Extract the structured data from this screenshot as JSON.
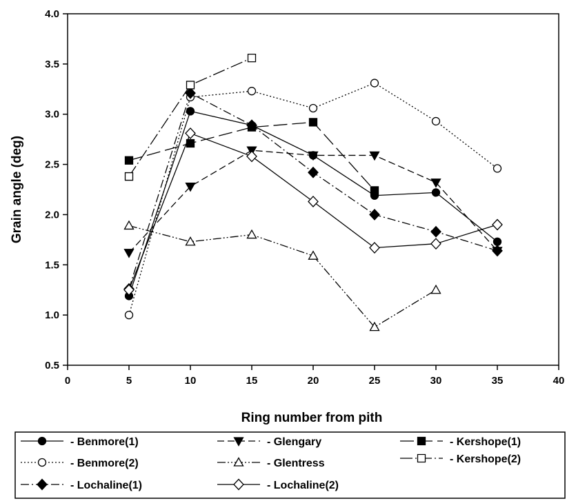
{
  "chart_data": {
    "type": "line",
    "title": "",
    "xlabel": "Ring number from pith",
    "ylabel": "Grain angle (deg)",
    "xlim": [
      0,
      40
    ],
    "ylim": [
      0.5,
      4.0
    ],
    "xticks": [
      "0",
      "5",
      "10",
      "15",
      "20",
      "25",
      "30",
      "35",
      "40"
    ],
    "yticks": [
      "0.5",
      "1.0",
      "1.5",
      "2.0",
      "2.5",
      "3.0",
      "3.5",
      "4.0"
    ],
    "grid": false,
    "legend_placement": "bottom",
    "series": [
      {
        "name": "- Benmore(1)",
        "marker": "circle-filled",
        "dash": "solid",
        "points": [
          [
            5,
            1.19
          ],
          [
            10,
            3.03
          ],
          [
            15,
            2.89
          ],
          [
            20,
            2.59
          ],
          [
            25,
            2.19
          ],
          [
            30,
            2.22
          ],
          [
            35,
            1.73
          ]
        ]
      },
      {
        "name": "- Benmore(2)",
        "marker": "circle-open",
        "dash": "dotted",
        "points": [
          [
            5,
            1.0
          ],
          [
            10,
            3.17
          ],
          [
            15,
            3.23
          ],
          [
            20,
            3.06
          ],
          [
            25,
            3.31
          ],
          [
            30,
            2.93
          ],
          [
            35,
            2.46
          ]
        ]
      },
      {
        "name": "- Lochaline(1)",
        "marker": "diamond-filled",
        "dash": "dash-dot",
        "points": [
          [
            5,
            1.26
          ],
          [
            10,
            3.21
          ],
          [
            15,
            2.89
          ],
          [
            20,
            2.42
          ],
          [
            25,
            2.0
          ],
          [
            30,
            1.83
          ],
          [
            35,
            1.64
          ]
        ]
      },
      {
        "name": "- Glengary",
        "marker": "triangle-down-filled",
        "dash": "dashed",
        "points": [
          [
            5,
            1.62
          ],
          [
            10,
            2.28
          ],
          [
            15,
            2.64
          ],
          [
            20,
            2.59
          ],
          [
            25,
            2.59
          ],
          [
            30,
            2.32
          ],
          [
            35,
            1.64
          ]
        ]
      },
      {
        "name": "- Glentress",
        "marker": "triangle-up-open",
        "dash": "dash-dot-dot",
        "points": [
          [
            5,
            1.89
          ],
          [
            10,
            1.73
          ],
          [
            15,
            1.8
          ],
          [
            20,
            1.59
          ],
          [
            25,
            0.88
          ],
          [
            30,
            1.25
          ]
        ]
      },
      {
        "name": "- Lochaline(2)",
        "marker": "diamond-open",
        "dash": "solid",
        "points": [
          [
            5,
            1.25
          ],
          [
            10,
            2.81
          ],
          [
            15,
            2.58
          ],
          [
            20,
            2.13
          ],
          [
            25,
            1.67
          ],
          [
            30,
            1.71
          ],
          [
            35,
            1.9
          ]
        ]
      },
      {
        "name": "- Kershope(1)",
        "marker": "square-filled",
        "dash": "long-dash",
        "points": [
          [
            5,
            2.54
          ],
          [
            10,
            2.71
          ],
          [
            15,
            2.87
          ],
          [
            20,
            2.92
          ],
          [
            25,
            2.24
          ]
        ]
      },
      {
        "name": "- Kershope(2)",
        "marker": "square-open",
        "dash": "long-dash-dot",
        "points": [
          [
            5,
            2.38
          ],
          [
            10,
            3.29
          ],
          [
            15,
            3.56
          ]
        ]
      }
    ]
  }
}
